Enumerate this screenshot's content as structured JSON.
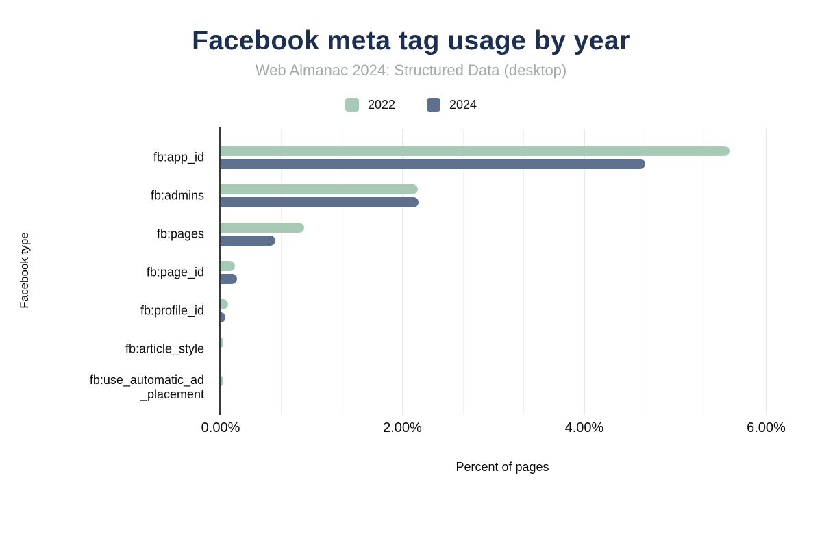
{
  "chart_data": {
    "type": "bar",
    "orientation": "horizontal",
    "title": "Facebook meta tag usage by year",
    "subtitle": "Web Almanac 2024: Structured Data (desktop)",
    "xlabel": "Percent of pages",
    "ylabel": "Facebook type",
    "categories": [
      "fb:app_id",
      "fb:admins",
      "fb:pages",
      "fb:page_id",
      "fb:profile_id",
      "fb:article_style",
      "fb:use_automatic_ad\n_placement"
    ],
    "series": [
      {
        "name": "2022",
        "color": "#a6cab5",
        "values": [
          5.6,
          2.17,
          0.92,
          0.16,
          0.08,
          0.02,
          0.02
        ]
      },
      {
        "name": "2024",
        "color": "#5f708c",
        "values": [
          4.67,
          2.18,
          0.6,
          0.18,
          0.05,
          0,
          0
        ]
      }
    ],
    "xlim": [
      0,
      6.2
    ],
    "xticks": [
      {
        "value": 0,
        "label": "0.00%"
      },
      {
        "value": 2,
        "label": "2.00%"
      },
      {
        "value": 4,
        "label": "4.00%"
      },
      {
        "value": 6,
        "label": "6.00%"
      }
    ],
    "grid": {
      "axis": "vertical",
      "minor_step": 0.6667,
      "major_every": 2
    },
    "legend_position": "top"
  },
  "colors": {
    "series_2022": "#a6cab5",
    "series_2024": "#5f708c",
    "title": "#1d2f50",
    "subtitle": "#a3a8ad",
    "axis_line": "#383838",
    "gridline_minor": "#f2f2f2",
    "gridline_major": "#e8e8e8"
  }
}
